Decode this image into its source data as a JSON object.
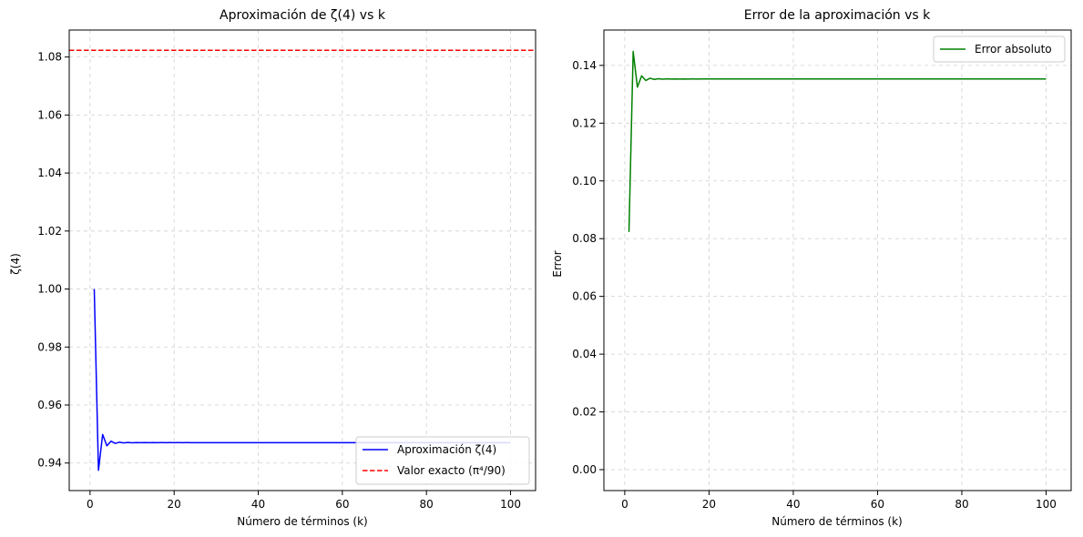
{
  "chart_data": [
    {
      "type": "line",
      "title": "Aproximación de ζ(4) vs k",
      "xlabel": "Número de términos (k)",
      "ylabel": "ζ(4)",
      "xlim": [
        -4.95,
        105.95
      ],
      "ylim": [
        0.9305,
        1.0893
      ],
      "xticks": [
        0,
        20,
        40,
        60,
        80,
        100
      ],
      "yticks": [
        0.94,
        0.96,
        0.98,
        1.0,
        1.02,
        1.04,
        1.06,
        1.08
      ],
      "ytick_decimals": 2,
      "grid": true,
      "legend_position": "lower-right",
      "series": [
        {
          "name": "Aproximación ζ(4)",
          "color": "#0000ff",
          "style": "solid",
          "formula": "alternating_zeta4",
          "k_range": [
            1,
            100
          ]
        },
        {
          "name": "Valor exacto (π⁴/90)",
          "color": "#ff0000",
          "style": "dashed",
          "value": 1.0823232,
          "span": "full"
        }
      ]
    },
    {
      "type": "line",
      "title": "Error de la aproximación vs k",
      "xlabel": "Número de términos (k)",
      "ylabel": "Error",
      "xlim": [
        -4.95,
        105.95
      ],
      "ylim": [
        -0.00725,
        0.15225
      ],
      "xticks": [
        0,
        20,
        40,
        60,
        80,
        100
      ],
      "yticks": [
        0.0,
        0.02,
        0.04,
        0.06,
        0.08,
        0.1,
        0.12,
        0.14
      ],
      "ytick_decimals": 2,
      "grid": true,
      "legend_position": "upper-right",
      "series": [
        {
          "name": "Error absoluto",
          "color": "#008000",
          "style": "solid",
          "formula": "abs_error",
          "k_range": [
            1,
            100
          ]
        }
      ]
    }
  ]
}
